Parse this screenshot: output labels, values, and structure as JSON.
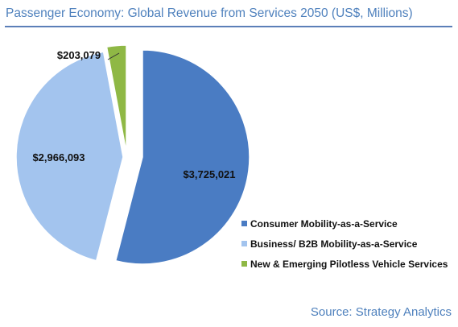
{
  "title": "Passenger Economy: Global Revenue from Services 2050 (US$, Millions)",
  "source": "Source: Strategy Analytics",
  "chart_data": {
    "type": "pie",
    "title": "Passenger Economy: Global Revenue from Services 2050 (US$, Millions)",
    "labels": [
      "Consumer Mobility-as-a-Service",
      "Business/ B2B Mobility-as-a-Service",
      "New & Emerging Pilotless Vehicle Services"
    ],
    "values": [
      3725021,
      2966093,
      203079
    ],
    "value_labels": [
      "$3,725,021",
      "$2,966,093",
      "$203,079"
    ],
    "colors": [
      "#4a7cc3",
      "#a3c4ee",
      "#8fb845"
    ],
    "legend_position": "bottom-right",
    "exploded": true
  }
}
